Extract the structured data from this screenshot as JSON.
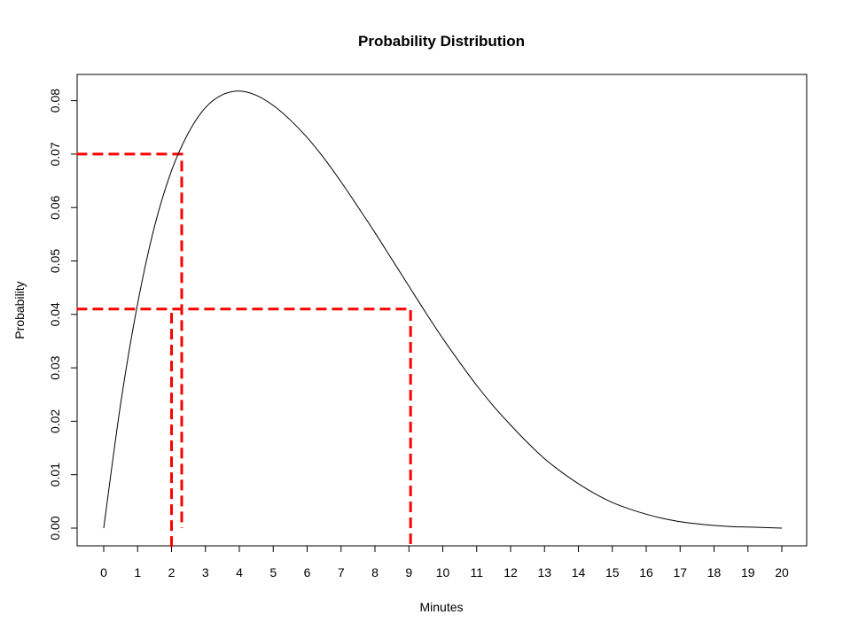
{
  "chart_data": {
    "type": "line",
    "title": "Probability Distribution",
    "xlabel": "Minutes",
    "ylabel": "Probability",
    "xlim": [
      0,
      20
    ],
    "ylim": [
      0,
      0.08
    ],
    "x_ticks": [
      "0",
      "1",
      "2",
      "3",
      "4",
      "5",
      "6",
      "7",
      "8",
      "9",
      "10",
      "11",
      "12",
      "13",
      "14",
      "15",
      "16",
      "17",
      "18",
      "19",
      "20"
    ],
    "y_ticks": [
      "0.00",
      "0.01",
      "0.02",
      "0.03",
      "0.04",
      "0.05",
      "0.06",
      "0.07",
      "0.08"
    ],
    "grid": false,
    "series": [
      {
        "color": "#000000",
        "x": [
          0,
          0.5,
          1,
          1.5,
          2,
          2.5,
          3,
          3.5,
          4,
          4.5,
          5,
          5.5,
          6,
          6.5,
          7,
          7.5,
          8,
          8.5,
          9,
          9.5,
          10,
          10.5,
          11,
          11.5,
          12,
          12.5,
          13,
          13.5,
          14,
          14.5,
          15,
          15.5,
          16,
          16.5,
          17,
          17.5,
          18,
          18.5,
          19,
          19.5,
          20
        ],
        "y": [
          0,
          0.0233,
          0.042,
          0.0565,
          0.0669,
          0.074,
          0.0787,
          0.0811,
          0.0818,
          0.081,
          0.0791,
          0.0764,
          0.0731,
          0.0692,
          0.0648,
          0.0601,
          0.0553,
          0.0503,
          0.0453,
          0.0403,
          0.0355,
          0.031,
          0.0267,
          0.0228,
          0.0193,
          0.016,
          0.013,
          0.0105,
          0.0083,
          0.0064,
          0.0048,
          0.0036,
          0.0026,
          0.0018,
          0.0012,
          0.0008,
          0.0005,
          0.0003,
          0.0002,
          0.0001,
          0.0
        ]
      }
    ],
    "reference_lines": [
      {
        "color": "#ff0000",
        "points": [
          [
            -0.8,
            0.07
          ],
          [
            2.3,
            0.07
          ],
          [
            2.3,
            0.0
          ]
        ]
      },
      {
        "color": "#ff0000",
        "points": [
          [
            -0.8,
            0.041
          ],
          [
            9.05,
            0.041
          ],
          [
            9.05,
            -0.0035
          ]
        ]
      },
      {
        "color": "#ff0000",
        "points": [
          [
            2.0,
            -0.0035
          ],
          [
            2.0,
            0.041
          ]
        ]
      }
    ]
  }
}
